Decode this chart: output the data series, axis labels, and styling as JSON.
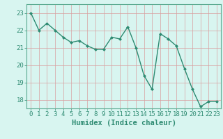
{
  "x": [
    0,
    1,
    2,
    3,
    4,
    5,
    6,
    7,
    8,
    9,
    10,
    11,
    12,
    13,
    14,
    15,
    16,
    17,
    18,
    19,
    20,
    21,
    22,
    23
  ],
  "y": [
    23.0,
    22.0,
    22.4,
    22.0,
    21.6,
    21.3,
    21.4,
    21.1,
    20.9,
    20.9,
    21.6,
    21.5,
    22.2,
    21.0,
    19.4,
    18.6,
    21.8,
    21.5,
    21.1,
    19.8,
    18.6,
    17.6,
    17.9,
    17.9
  ],
  "line_color": "#2e8b72",
  "marker": "D",
  "marker_size": 2.0,
  "bg_color": "#d8f5f0",
  "grid_color": "#b8ddd8",
  "grid_minor_color": "#e0f0ee",
  "xlabel": "Humidex (Indice chaleur)",
  "xlabel_fontsize": 7.5,
  "ylabel_ticks": [
    18,
    19,
    20,
    21,
    22,
    23
  ],
  "xlim": [
    -0.5,
    23.5
  ],
  "ylim": [
    17.5,
    23.5
  ],
  "tick_fontsize": 6.5,
  "spine_color": "#5aaa90"
}
